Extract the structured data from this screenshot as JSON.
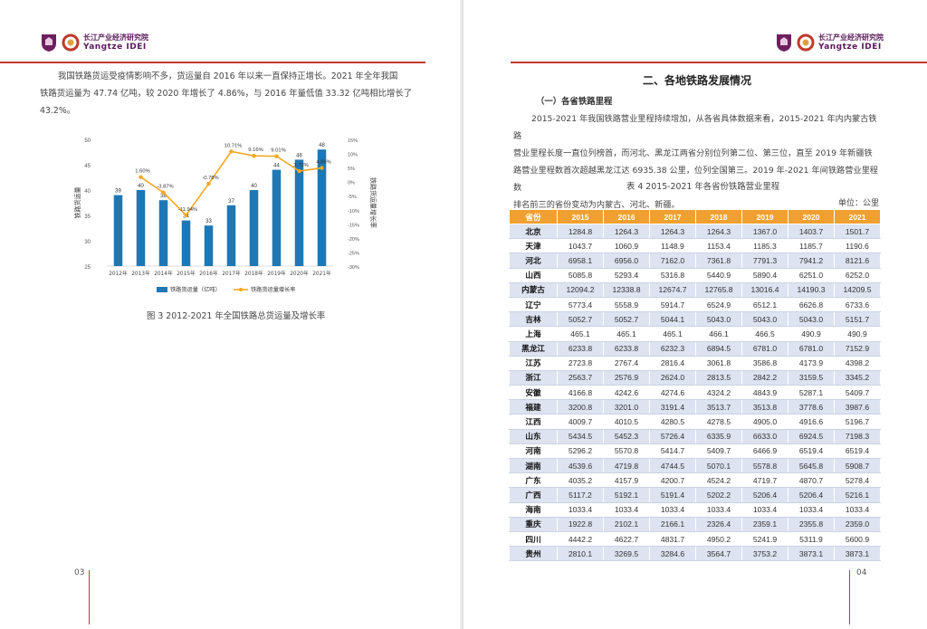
{
  "header": {
    "logo_cn": "长江产业经济研究院",
    "logo_en": "Yangtze IDEI"
  },
  "left_page": {
    "paragraph": [
      "我国铁路货运受疫情影响不多，货运量自 2016 年以来一直保持正增长。2021 年全年我国",
      "铁路货运量为 47.74 亿吨，较 2020 年增长了 4.86%，与 2016 年量低值 33.32 亿吨相比增长了",
      "43.2%。"
    ],
    "caption": "图 3 2012-2021 年全国铁路总货运量及增长率",
    "page_number": "03"
  },
  "chart_data": {
    "type": "bar",
    "categories": [
      "2012年",
      "2013年",
      "2014年",
      "2015年",
      "2016年",
      "2017年",
      "2018年",
      "2019年",
      "2020年",
      "2021年"
    ],
    "series": [
      {
        "name": "铁路货运量（亿吨）",
        "type": "bar",
        "color": "#1f77b4",
        "values": [
          39,
          40,
          38,
          34,
          33,
          37,
          40,
          44,
          46,
          48
        ]
      },
      {
        "name": "铁路货运量增长率",
        "type": "line",
        "color": "#f5a623",
        "values": [
          null,
          1.6,
          -3.87,
          -11.94,
          -0.78,
          10.71,
          9.16,
          9.01,
          3.72,
          4.86
        ],
        "labels": [
          "",
          "1.60%",
          "-3.87%",
          "-11.94%",
          "-0.78%",
          "10.71%",
          "9.16%",
          "9.01%",
          "3.72%",
          "4.86%"
        ]
      }
    ],
    "bar_labels": [
      "39",
      "40",
      "38",
      "34",
      "33",
      "37",
      "40",
      "44",
      "46",
      "48"
    ],
    "ylabel_left": "铁路货运量",
    "ylabel_right": "铁路货运量增长率",
    "ylim_left": [
      25,
      50
    ],
    "yticks_left": [
      "25",
      "30",
      "35",
      "40",
      "45",
      "50"
    ],
    "ylim_right": [
      -30,
      15
    ],
    "yticks_right": [
      "-30%",
      "-25%",
      "-20%",
      "-15%",
      "-10%",
      "-5%",
      "0%",
      "5%",
      "10%",
      "15%"
    ],
    "legend": "bottom"
  },
  "right_page": {
    "section_title": "二、各地铁路发展情况",
    "sub_title": "（一）各省铁路里程",
    "paragraph": [
      "2015-2021 年我国铁路营业里程持续增加，从各省具体数据来看，2015-2021 年内内蒙古铁路",
      "营业里程长度一直位列榜首，而河北、黑龙江两省分别位列第二位、第三位，直至 2019 年新疆铁",
      "路营业里程数首次超越黑龙江达 6935.38 公里，位列全国第三。2019 年-2021 年间铁路营业里程数",
      "排名前三的省份变动为内蒙古、河北、新疆。"
    ],
    "table_title": "表 4 2015-2021 年各省份铁路营业里程",
    "unit": "单位：公里",
    "table": {
      "headers": [
        "省份",
        "2015",
        "2016",
        "2017",
        "2018",
        "2019",
        "2020",
        "2021"
      ],
      "rows": [
        [
          "北京",
          "1284.8",
          "1264.3",
          "1264.3",
          "1264.3",
          "1367.0",
          "1403.7",
          "1501.7"
        ],
        [
          "天津",
          "1043.7",
          "1060.9",
          "1148.9",
          "1153.4",
          "1185.3",
          "1185.7",
          "1190.6"
        ],
        [
          "河北",
          "6958.1",
          "6956.0",
          "7162.0",
          "7361.8",
          "7791.3",
          "7941.2",
          "8121.6"
        ],
        [
          "山西",
          "5085.8",
          "5293.4",
          "5316.8",
          "5440.9",
          "5890.4",
          "6251.0",
          "6252.0"
        ],
        [
          "内蒙古",
          "12094.2",
          "12338.8",
          "12674.7",
          "12765.8",
          "13016.4",
          "14190.3",
          "14209.5"
        ],
        [
          "辽宁",
          "5773.4",
          "5558.9",
          "5914.7",
          "6524.9",
          "6512.1",
          "6626.8",
          "6733.6"
        ],
        [
          "吉林",
          "5052.7",
          "5052.7",
          "5044.1",
          "5043.0",
          "5043.0",
          "5043.0",
          "5151.7"
        ],
        [
          "上海",
          "465.1",
          "465.1",
          "465.1",
          "466.1",
          "466.5",
          "490.9",
          "490.9"
        ],
        [
          "黑龙江",
          "6233.8",
          "6233.8",
          "6232.3",
          "6894.5",
          "6781.0",
          "6781.0",
          "7152.9"
        ],
        [
          "江苏",
          "2723.8",
          "2767.4",
          "2816.4",
          "3061.8",
          "3586.8",
          "4173.9",
          "4398.2"
        ],
        [
          "浙江",
          "2563.7",
          "2576.9",
          "2624.0",
          "2813.5",
          "2842.2",
          "3159.5",
          "3345.2"
        ],
        [
          "安徽",
          "4166.8",
          "4242.6",
          "4274.6",
          "4324.2",
          "4843.9",
          "5287.1",
          "5409.7"
        ],
        [
          "福建",
          "3200.8",
          "3201.0",
          "3191.4",
          "3513.7",
          "3513.8",
          "3778.6",
          "3987.6"
        ],
        [
          "江西",
          "4009.7",
          "4010.5",
          "4280.5",
          "4278.5",
          "4905.0",
          "4916.6",
          "5196.7"
        ],
        [
          "山东",
          "5434.5",
          "5452.3",
          "5726.4",
          "6335.9",
          "6633.0",
          "6924.5",
          "7198.3"
        ],
        [
          "河南",
          "5296.2",
          "5570.8",
          "5414.7",
          "5409.7",
          "6466.9",
          "6519.4",
          "6519.4"
        ],
        [
          "湖南",
          "4539.6",
          "4719.8",
          "4744.5",
          "5070.1",
          "5578.8",
          "5645.8",
          "5908.7"
        ],
        [
          "广东",
          "4035.2",
          "4157.9",
          "4200.7",
          "4524.2",
          "4719.7",
          "4870.7",
          "5278.4"
        ],
        [
          "广西",
          "5117.2",
          "5192.1",
          "5191.4",
          "5202.2",
          "5206.4",
          "5206.4",
          "5216.1"
        ],
        [
          "海南",
          "1033.4",
          "1033.4",
          "1033.4",
          "1033.4",
          "1033.4",
          "1033.4",
          "1033.4"
        ],
        [
          "重庆",
          "1922.8",
          "2102.1",
          "2166.1",
          "2326.4",
          "2359.1",
          "2355.8",
          "2359.0"
        ],
        [
          "四川",
          "4442.2",
          "4622.7",
          "4831.7",
          "4950.2",
          "5241.9",
          "5311.9",
          "5600.9"
        ],
        [
          "贵州",
          "2810.1",
          "3269.5",
          "3284.6",
          "3564.7",
          "3753.2",
          "3873.1",
          "3873.1"
        ]
      ]
    },
    "page_number": "04"
  },
  "colors": {
    "accent_red": "#c0392b",
    "table_header": "#f0a030",
    "table_row_band": "#dde3f0",
    "bar": "#1f77b4",
    "line": "#f5a623"
  }
}
